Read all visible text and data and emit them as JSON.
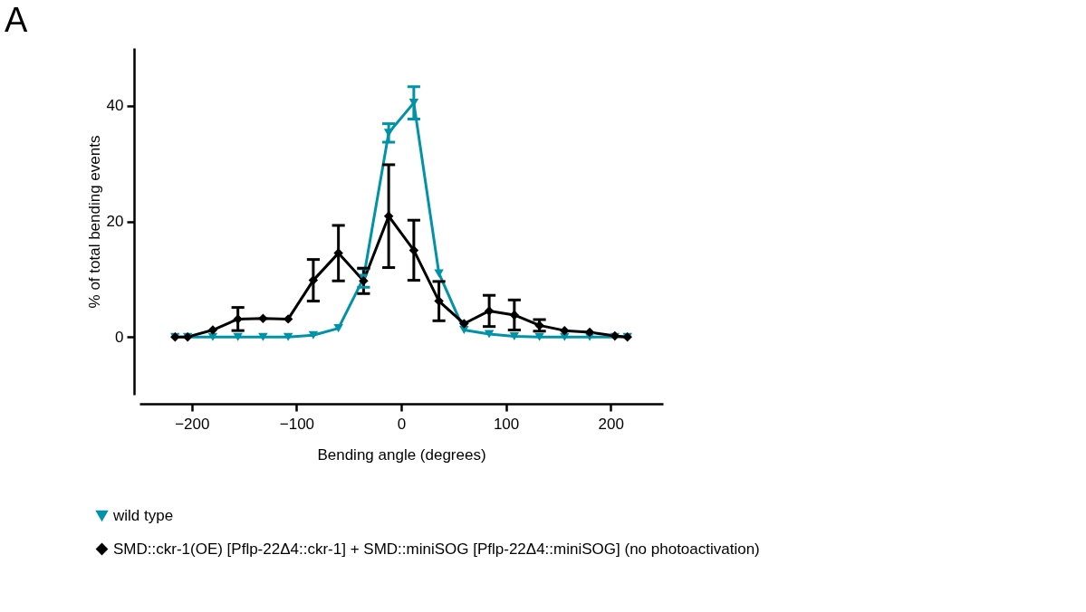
{
  "chart_data": {
    "type": "line",
    "title": "A",
    "xlabel": "Bending angle (degrees)",
    "ylabel": "% of total bending events",
    "x": [
      -216,
      -204,
      -180,
      -156,
      -132,
      -108,
      -84,
      -60,
      -36,
      -12,
      12,
      36,
      60,
      84,
      108,
      132,
      156,
      180,
      204,
      216
    ],
    "series": [
      {
        "name": "wild type",
        "color": "#0093a8",
        "marker": "triangle",
        "values": [
          0,
          0,
          0,
          0,
          0,
          0,
          0.3,
          1.5,
          10.2,
          35.3,
          40.5,
          11,
          1.2,
          0.5,
          0.1,
          0,
          0,
          0,
          0,
          0
        ],
        "errors": [
          null,
          null,
          null,
          null,
          null,
          null,
          null,
          null,
          1.6,
          1.6,
          2.8,
          null,
          null,
          null,
          null,
          null,
          null,
          null,
          null,
          null
        ]
      },
      {
        "name": "SMD::ckr-1(OE) [Pflp-22Δ4::ckr-1] + SMD::miniSOG [Pflp-22Δ4::miniSOG] (no photoactivation)",
        "color": "#000000",
        "marker": "diamond",
        "values": [
          0,
          0,
          1.2,
          3.1,
          3.2,
          3.1,
          9.8,
          14.5,
          9.7,
          20.9,
          15,
          6.2,
          2.3,
          4.5,
          3.8,
          2,
          1.1,
          0.8,
          0.2,
          0
        ],
        "errors": [
          null,
          null,
          null,
          2,
          null,
          null,
          3.6,
          4.8,
          2.2,
          8.9,
          5.2,
          3.4,
          null,
          2.7,
          2.6,
          1,
          null,
          null,
          null,
          null
        ]
      }
    ],
    "xlim": [
      -250,
      250
    ],
    "xticks": [
      -200,
      -100,
      0,
      100,
      200
    ],
    "ylim": [
      -10,
      50
    ],
    "yticks": [
      0,
      20,
      40
    ],
    "grid": false,
    "legend": "bottom right",
    "line_style": "solid"
  }
}
